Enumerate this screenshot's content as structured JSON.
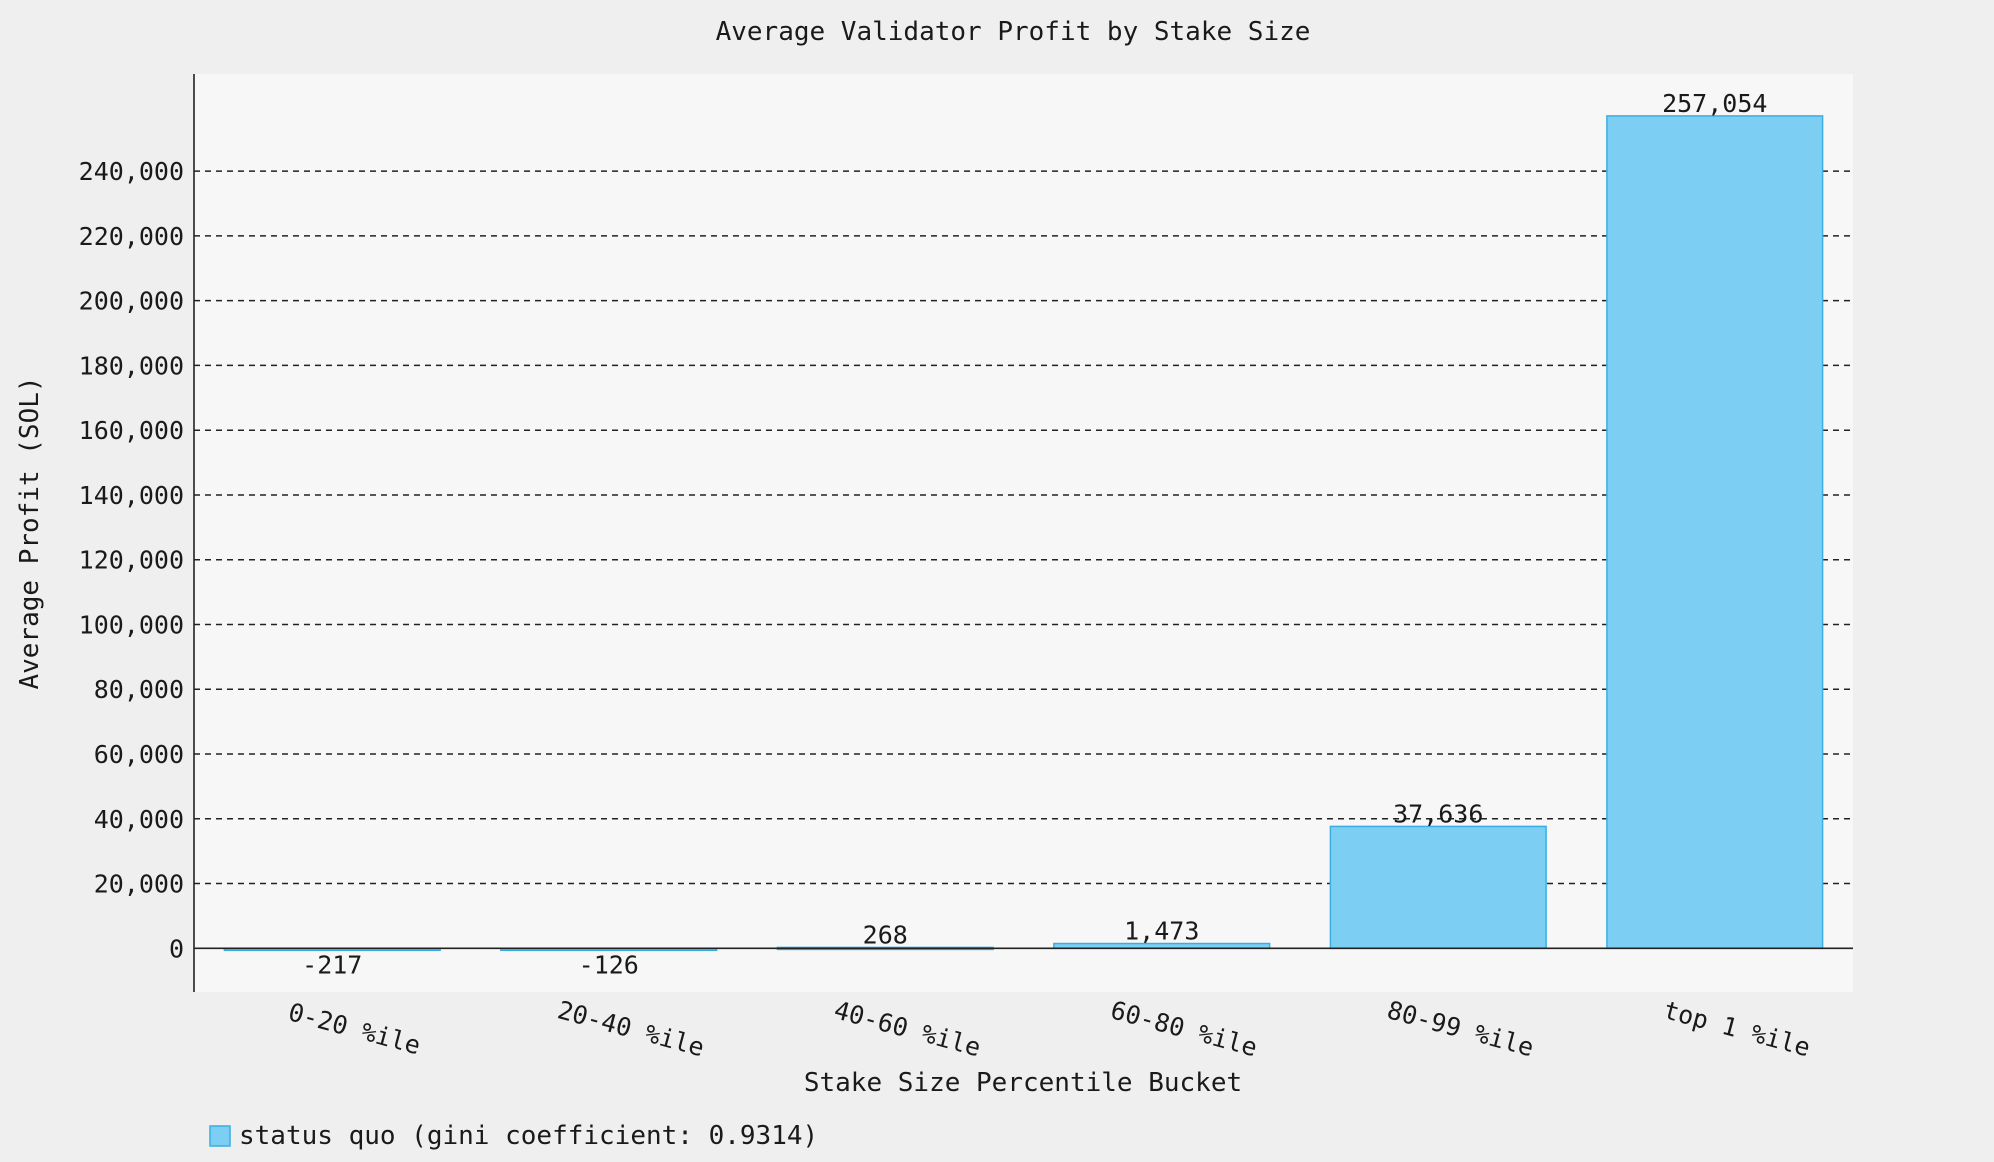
{
  "chart_data": {
    "type": "bar",
    "title": "Average Validator Profit by Stake Size",
    "xlabel": "Stake Size Percentile Bucket",
    "ylabel": "Average Profit (SOL)",
    "categories": [
      "0-20 %ile",
      "20-40 %ile",
      "40-60 %ile",
      "60-80 %ile",
      "80-99 %ile",
      "top 1 %ile"
    ],
    "series": [
      {
        "name": "status quo (gini coefficient: 0.9314)",
        "values": [
          -217,
          -126,
          268,
          1473,
          37636,
          257054
        ],
        "data_labels": [
          "-217",
          "-126",
          "268",
          "1,473",
          "37,636",
          "257,054"
        ]
      }
    ],
    "ylim": [
      -13500,
      270000
    ],
    "yticks": [
      0,
      20000,
      40000,
      60000,
      80000,
      100000,
      120000,
      140000,
      160000,
      180000,
      200000,
      220000,
      240000
    ],
    "ytick_labels": [
      "0",
      "20,000",
      "40,000",
      "60,000",
      "80,000",
      "100,000",
      "120,000",
      "140,000",
      "160,000",
      "180,000",
      "200,000",
      "220,000",
      "240,000"
    ],
    "grid": true,
    "legend_position": "bottom-left",
    "colors": {
      "bar_fill": "#7ccff2",
      "bar_stroke": "#3aaee0",
      "plot_background": "#f7f7f7",
      "page_background": "#efefef",
      "grid": "#222222"
    }
  }
}
